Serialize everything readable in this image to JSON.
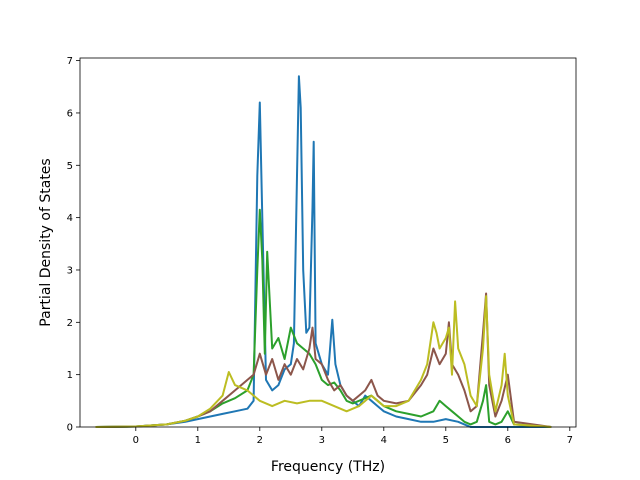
{
  "chart_data": {
    "type": "line",
    "xlabel": "Frequency (THz)",
    "ylabel": "Partial Density of States",
    "xlim": [
      -0.9,
      7.1
    ],
    "ylim": [
      0,
      7.05
    ],
    "xticks": [
      "0",
      "1",
      "2",
      "3",
      "4",
      "5",
      "6",
      "7"
    ],
    "yticks": [
      "0",
      "1",
      "2",
      "3",
      "4",
      "5",
      "6",
      "7"
    ],
    "grid": false,
    "series": [
      {
        "color": "#1f77b4",
        "x": [
          -0.65,
          0.0,
          0.5,
          0.8,
          1.0,
          1.2,
          1.4,
          1.6,
          1.8,
          1.9,
          1.96,
          2.0,
          2.04,
          2.1,
          2.2,
          2.3,
          2.4,
          2.5,
          2.55,
          2.6,
          2.63,
          2.66,
          2.7,
          2.75,
          2.8,
          2.85,
          2.87,
          2.9,
          3.0,
          3.1,
          3.17,
          3.22,
          3.3,
          3.4,
          3.5,
          3.6,
          3.7,
          3.8,
          3.9,
          4.0,
          4.2,
          4.4,
          4.6,
          4.8,
          5.0,
          5.2,
          5.3,
          5.4,
          5.6,
          5.8,
          6.0,
          6.2,
          6.7
        ],
        "y": [
          0,
          0.01,
          0.05,
          0.1,
          0.15,
          0.2,
          0.25,
          0.3,
          0.35,
          0.5,
          4.8,
          6.2,
          4.0,
          0.9,
          0.7,
          0.8,
          1.1,
          1.2,
          1.6,
          4.8,
          6.7,
          6.1,
          3.0,
          1.8,
          1.9,
          4.2,
          5.45,
          1.6,
          1.2,
          1.0,
          2.05,
          1.2,
          0.8,
          0.6,
          0.5,
          0.4,
          0.6,
          0.5,
          0.4,
          0.3,
          0.2,
          0.15,
          0.1,
          0.1,
          0.15,
          0.1,
          0.05,
          0,
          0,
          0,
          0,
          0,
          0
        ]
      },
      {
        "color": "#2ca02c",
        "x": [
          -0.65,
          0.0,
          0.5,
          0.8,
          1.0,
          1.2,
          1.4,
          1.6,
          1.8,
          1.9,
          1.96,
          2.0,
          2.04,
          2.08,
          2.12,
          2.2,
          2.3,
          2.4,
          2.5,
          2.6,
          2.7,
          2.8,
          2.9,
          3.0,
          3.1,
          3.2,
          3.3,
          3.4,
          3.5,
          3.6,
          3.7,
          3.8,
          3.9,
          4.0,
          4.2,
          4.4,
          4.6,
          4.8,
          4.9,
          5.0,
          5.1,
          5.2,
          5.3,
          5.4,
          5.5,
          5.6,
          5.65,
          5.7,
          5.8,
          5.9,
          6.0,
          6.1,
          6.7
        ],
        "y": [
          0,
          0.01,
          0.05,
          0.12,
          0.2,
          0.3,
          0.45,
          0.55,
          0.7,
          1.0,
          3.0,
          4.15,
          3.2,
          1.4,
          3.35,
          1.5,
          1.7,
          1.3,
          1.9,
          1.6,
          1.5,
          1.4,
          1.2,
          0.9,
          0.8,
          0.85,
          0.7,
          0.5,
          0.45,
          0.5,
          0.55,
          0.6,
          0.5,
          0.4,
          0.3,
          0.25,
          0.2,
          0.3,
          0.5,
          0.4,
          0.3,
          0.2,
          0.1,
          0.05,
          0.1,
          0.5,
          0.8,
          0.1,
          0.05,
          0.1,
          0.3,
          0.05,
          0
        ]
      },
      {
        "color": "#8c564b",
        "x": [
          -0.65,
          0.0,
          0.5,
          0.8,
          1.0,
          1.2,
          1.4,
          1.6,
          1.8,
          1.9,
          2.0,
          2.05,
          2.1,
          2.2,
          2.3,
          2.4,
          2.5,
          2.6,
          2.7,
          2.8,
          2.85,
          2.9,
          3.0,
          3.1,
          3.2,
          3.3,
          3.4,
          3.5,
          3.6,
          3.7,
          3.8,
          3.9,
          4.0,
          4.2,
          4.4,
          4.6,
          4.7,
          4.8,
          4.9,
          5.0,
          5.05,
          5.1,
          5.2,
          5.3,
          5.4,
          5.5,
          5.6,
          5.65,
          5.7,
          5.8,
          5.9,
          6.0,
          6.1,
          6.7
        ],
        "y": [
          0,
          0.01,
          0.05,
          0.12,
          0.2,
          0.3,
          0.5,
          0.7,
          0.9,
          1.0,
          1.4,
          1.2,
          1.0,
          1.3,
          0.9,
          1.2,
          1.0,
          1.3,
          1.1,
          1.5,
          1.9,
          1.3,
          1.2,
          0.9,
          0.7,
          0.8,
          0.6,
          0.5,
          0.6,
          0.7,
          0.9,
          0.6,
          0.5,
          0.45,
          0.5,
          0.8,
          1.0,
          1.5,
          1.2,
          1.4,
          2.0,
          1.2,
          1.0,
          0.7,
          0.3,
          0.4,
          1.8,
          2.55,
          0.8,
          0.2,
          0.5,
          1.0,
          0.1,
          0
        ]
      },
      {
        "color": "#bcbd22",
        "x": [
          -0.65,
          0.0,
          0.5,
          0.8,
          1.0,
          1.2,
          1.4,
          1.5,
          1.6,
          1.8,
          2.0,
          2.2,
          2.4,
          2.6,
          2.8,
          3.0,
          3.2,
          3.4,
          3.6,
          3.8,
          4.0,
          4.2,
          4.4,
          4.6,
          4.7,
          4.8,
          4.85,
          4.9,
          5.0,
          5.05,
          5.1,
          5.15,
          5.2,
          5.3,
          5.4,
          5.5,
          5.6,
          5.65,
          5.7,
          5.8,
          5.9,
          5.95,
          6.0,
          6.1,
          6.7
        ],
        "y": [
          0,
          0.01,
          0.05,
          0.12,
          0.2,
          0.35,
          0.6,
          1.05,
          0.8,
          0.7,
          0.5,
          0.4,
          0.5,
          0.45,
          0.5,
          0.5,
          0.4,
          0.3,
          0.4,
          0.6,
          0.4,
          0.4,
          0.5,
          0.9,
          1.2,
          2.0,
          1.8,
          1.5,
          1.7,
          1.9,
          1.0,
          2.4,
          1.5,
          1.2,
          0.6,
          0.4,
          1.5,
          2.5,
          1.0,
          0.3,
          0.8,
          1.4,
          0.6,
          0.05,
          0
        ]
      }
    ]
  }
}
